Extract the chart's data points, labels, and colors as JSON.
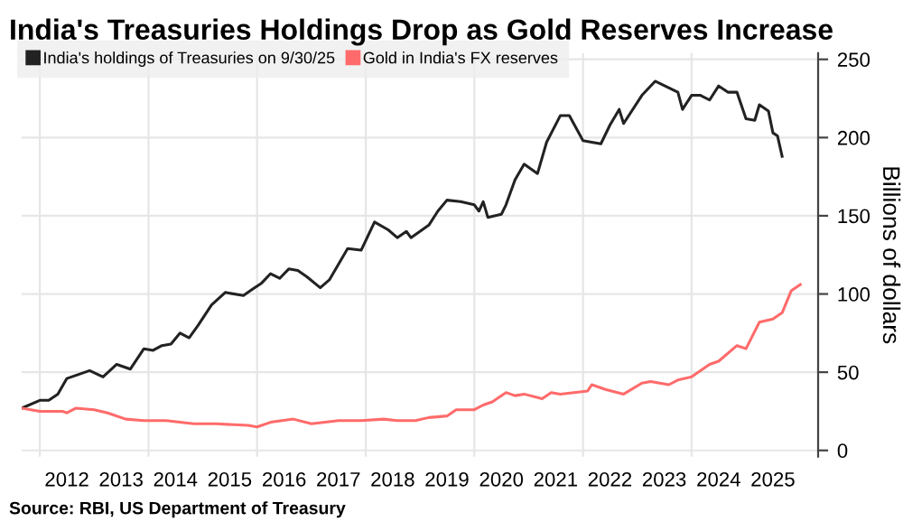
{
  "chart_data": {
    "type": "line",
    "title": "India's Treasuries Holdings Drop as Gold Reserves Increase",
    "ylabel": "Billions of dollars",
    "annotations": [
      "Source: RBI, US Department of Treasury"
    ],
    "series": [
      {
        "name": "India's holdings of Treasuries on 9/30/25",
        "color": "#222222",
        "x": [
          "2011-09",
          "2012-01",
          "2012-03",
          "2012-05",
          "2012-07",
          "2012-10",
          "2012-12",
          "2013-03",
          "2013-06",
          "2013-09",
          "2013-12",
          "2014-02",
          "2014-04",
          "2014-06",
          "2014-08",
          "2014-10",
          "2014-12",
          "2015-03",
          "2015-06",
          "2015-10",
          "2015-12",
          "2016-02",
          "2016-04",
          "2016-06",
          "2016-08",
          "2016-10",
          "2016-12",
          "2017-03",
          "2017-05",
          "2017-09",
          "2017-12",
          "2018-03",
          "2018-06",
          "2018-08",
          "2018-10",
          "2018-11",
          "2019-03",
          "2019-05",
          "2019-07",
          "2019-10",
          "2020-01",
          "2020-02",
          "2020-03",
          "2020-04",
          "2020-07",
          "2020-08",
          "2020-10",
          "2020-12",
          "2021-03",
          "2021-05",
          "2021-08",
          "2021-10",
          "2022-01",
          "2022-03",
          "2022-05",
          "2022-07",
          "2022-09",
          "2022-10",
          "2023-02",
          "2023-05",
          "2023-10",
          "2023-11",
          "2024-01",
          "2024-03",
          "2024-05",
          "2024-07",
          "2024-09",
          "2024-11",
          "2025-01",
          "2025-03",
          "2025-04",
          "2025-06",
          "2025-07",
          "2025-08",
          "2025-09"
        ],
        "values": [
          27,
          32,
          32,
          36,
          46,
          49,
          51,
          47,
          55,
          52,
          65,
          64,
          67,
          68,
          75,
          72,
          80,
          93,
          101,
          99,
          103,
          107,
          113,
          110,
          116,
          115,
          111,
          104,
          109,
          129,
          128,
          146,
          141,
          136,
          140,
          136,
          144,
          153,
          160,
          159,
          157,
          153,
          159,
          149,
          151,
          157,
          173,
          183,
          177,
          197,
          214,
          214,
          198,
          197,
          196,
          208,
          218,
          209,
          227,
          236,
          229,
          218,
          227,
          227,
          224,
          233,
          229,
          229,
          212,
          211,
          221,
          217,
          203,
          201,
          188
        ]
      },
      {
        "name": "Gold in India's FX reserves",
        "color": "#ff6b6b",
        "x": [
          "2011-09",
          "2012-01",
          "2012-06",
          "2012-07",
          "2012-09",
          "2013-01",
          "2013-04",
          "2013-08",
          "2013-12",
          "2014-05",
          "2014-11",
          "2015-04",
          "2015-11",
          "2016-01",
          "2016-04",
          "2016-09",
          "2017-01",
          "2017-07",
          "2017-12",
          "2018-05",
          "2018-08",
          "2018-12",
          "2019-03",
          "2019-07",
          "2019-09",
          "2020-01",
          "2020-03",
          "2020-05",
          "2020-08",
          "2020-10",
          "2020-12",
          "2021-04",
          "2021-06",
          "2021-08",
          "2022-02",
          "2022-03",
          "2022-06",
          "2022-10",
          "2023-02",
          "2023-04",
          "2023-08",
          "2023-10",
          "2024-01",
          "2024-05",
          "2024-07",
          "2024-11",
          "2025-01",
          "2025-04",
          "2025-07",
          "2025-09",
          "2025-11",
          "2026-01"
        ],
        "values": [
          27,
          25,
          25,
          24,
          27,
          26,
          24,
          20,
          19,
          19,
          17,
          17,
          16,
          15,
          18,
          20,
          17,
          19,
          19,
          20,
          19,
          19,
          21,
          22,
          26,
          26,
          29,
          31,
          37,
          35,
          36,
          33,
          37,
          36,
          38,
          42,
          39,
          36,
          43,
          44,
          42,
          45,
          47,
          55,
          57,
          67,
          65,
          82,
          84,
          88,
          102,
          106
        ]
      }
    ],
    "xlim": [
      "2011-09",
      "2026-05"
    ],
    "xticks": [
      {
        "value": "2012-01",
        "label": null
      },
      {
        "value": "2014-01",
        "label": null
      },
      {
        "value": "2016-01",
        "label": null
      },
      {
        "value": "2018-01",
        "label": null
      },
      {
        "value": "2020-01",
        "label": null
      },
      {
        "value": "2022-01",
        "label": null
      },
      {
        "value": "2024-01",
        "label": null
      },
      {
        "value": "2012-07",
        "label": "2012"
      },
      {
        "value": "2013-07",
        "label": "2013"
      },
      {
        "value": "2014-07",
        "label": "2014"
      },
      {
        "value": "2015-07",
        "label": "2015"
      },
      {
        "value": "2016-07",
        "label": "2016"
      },
      {
        "value": "2017-07",
        "label": "2017"
      },
      {
        "value": "2018-07",
        "label": "2018"
      },
      {
        "value": "2019-07",
        "label": "2019"
      },
      {
        "value": "2020-07",
        "label": "2020"
      },
      {
        "value": "2021-07",
        "label": "2021"
      },
      {
        "value": "2022-07",
        "label": "2022"
      },
      {
        "value": "2023-07",
        "label": "2023"
      },
      {
        "value": "2024-07",
        "label": "2024"
      },
      {
        "value": "2025-07",
        "label": "2025"
      }
    ],
    "ylim": [
      -4,
      254
    ],
    "yticks": [
      0,
      50,
      100,
      150,
      200,
      250
    ],
    "grid": true,
    "legend": "top left",
    "marker": "none",
    "line_style": "solid"
  }
}
